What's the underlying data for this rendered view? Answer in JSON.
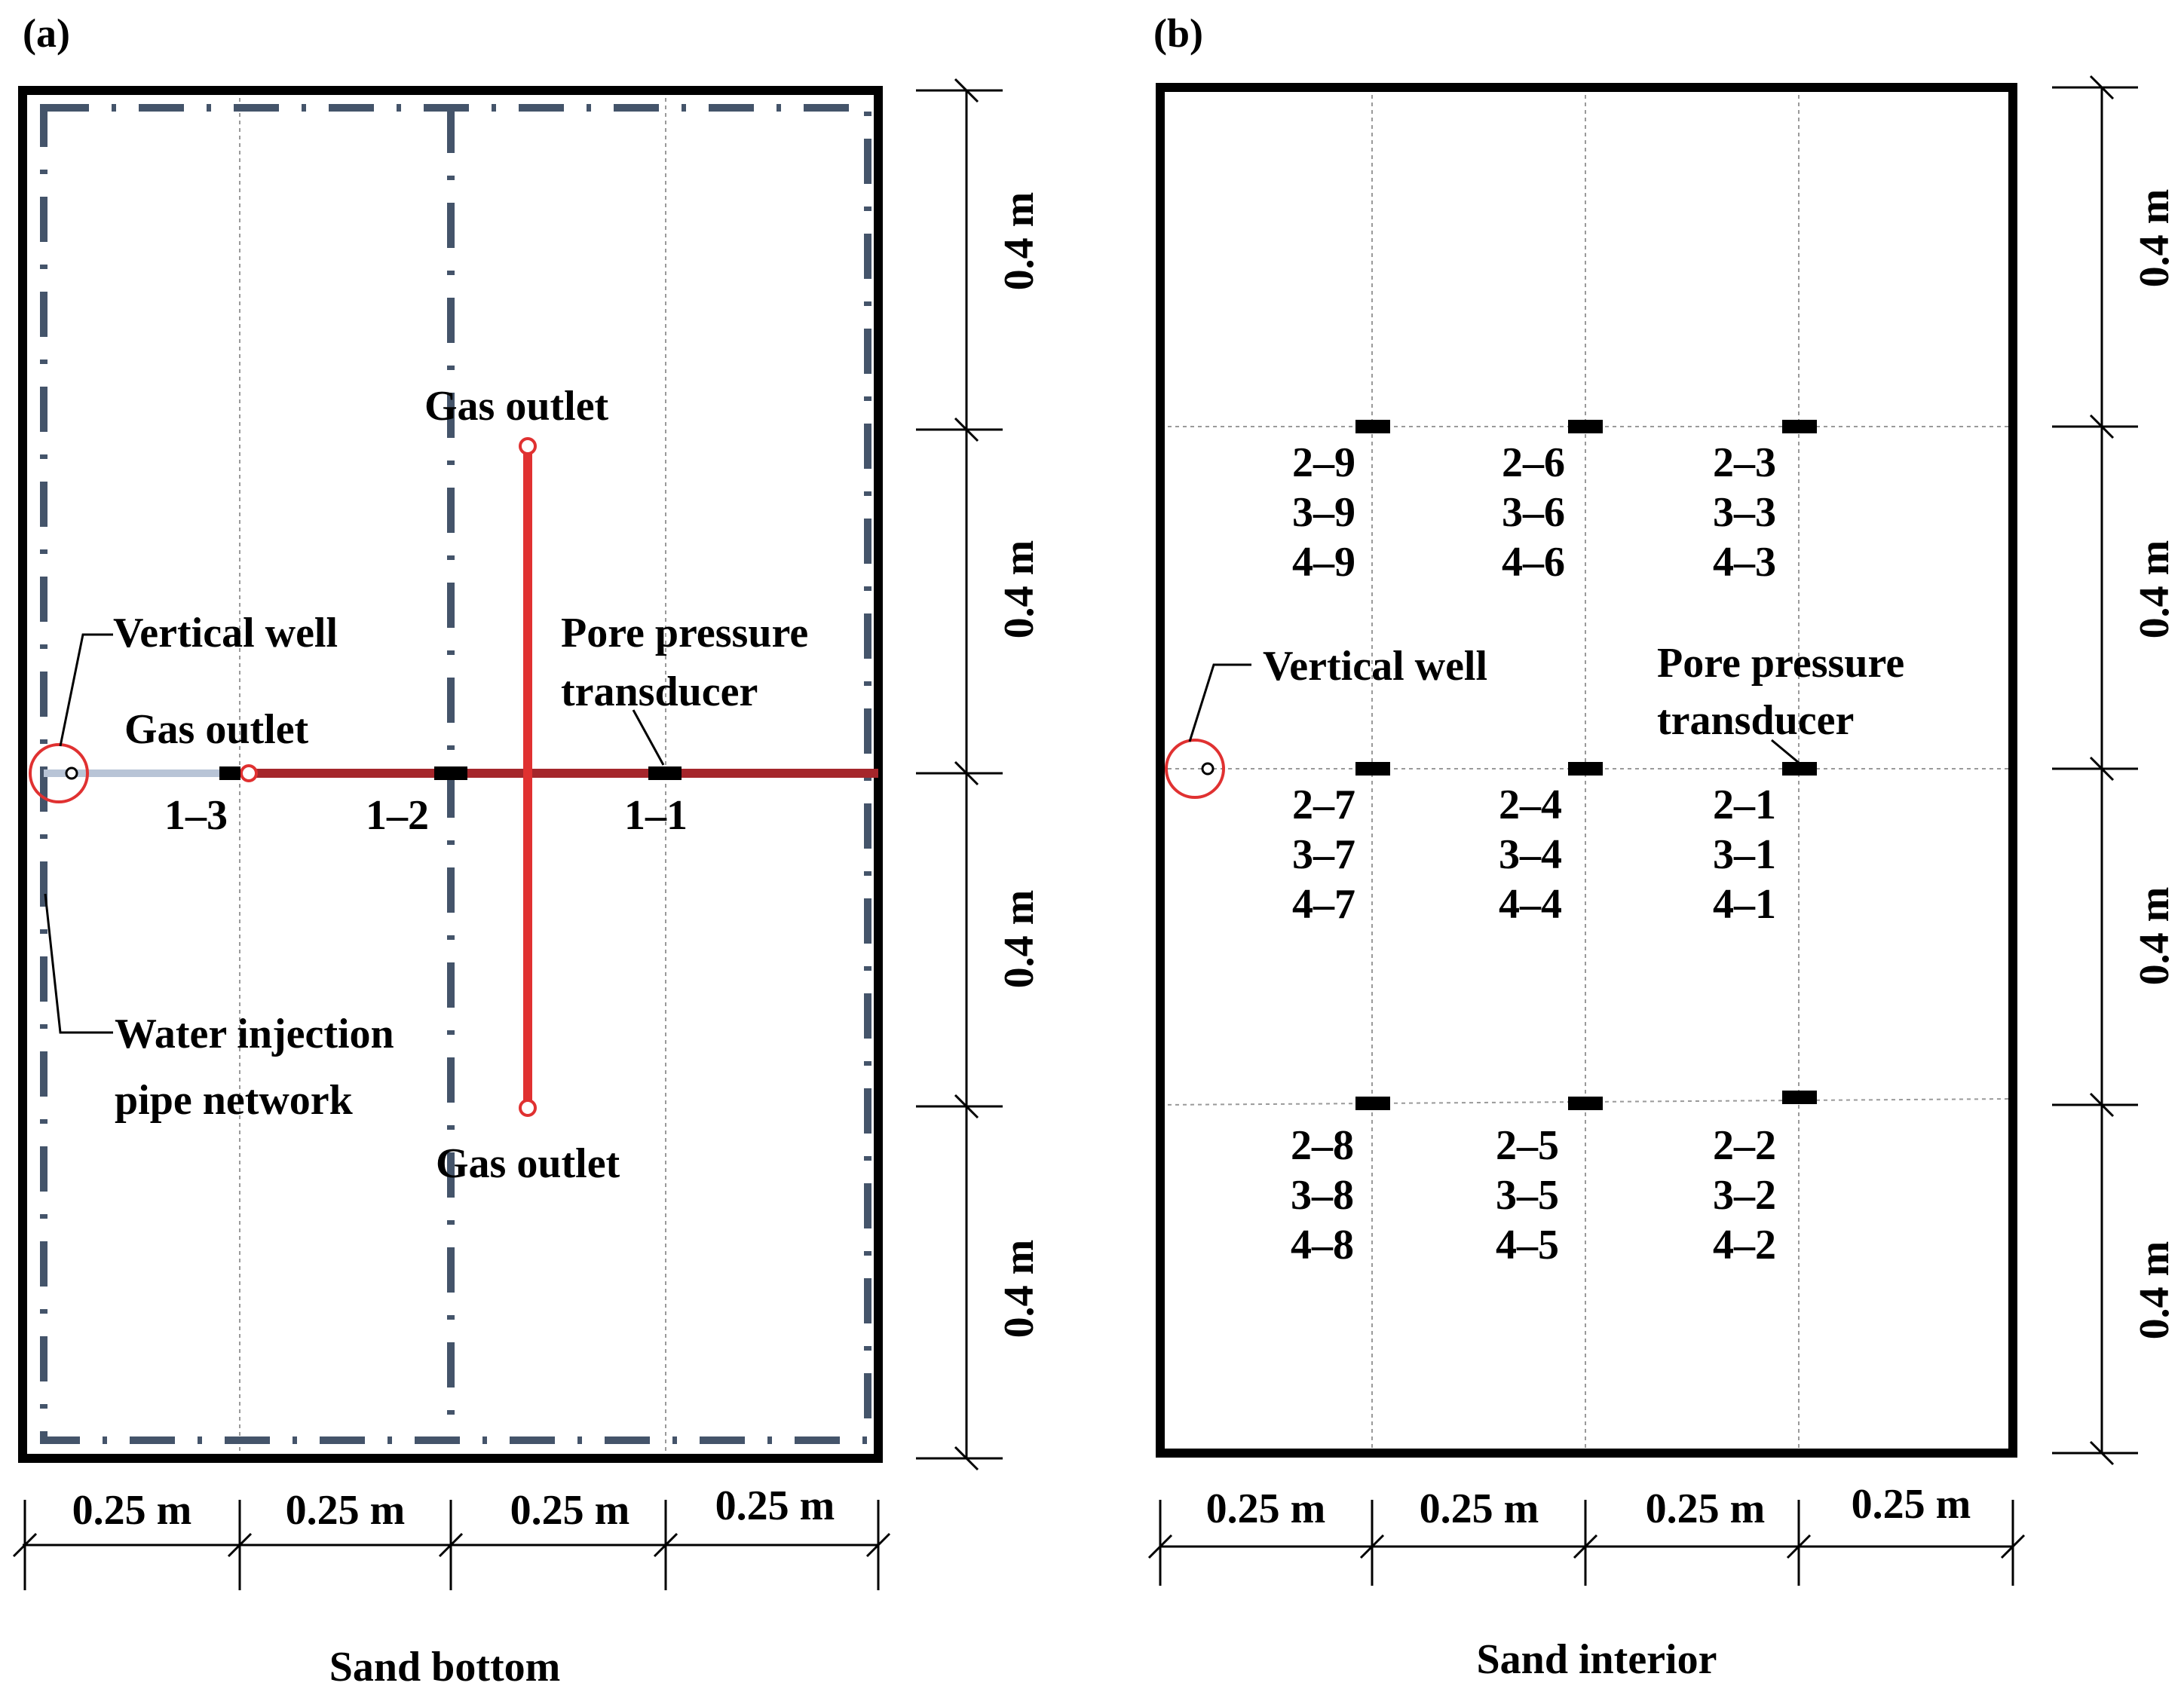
{
  "panel_a": {
    "letter": "(a)",
    "caption": "Sand bottom",
    "labels": {
      "gas_outlet_top": "Gas outlet",
      "gas_outlet_left": "Gas outlet",
      "gas_outlet_bottom": "Gas outlet",
      "vertical_well": "Vertical well",
      "pore_line1": "Pore pressure",
      "pore_line2": "transducer",
      "water_line1": "Water injection",
      "water_line2": "pipe network"
    },
    "transducers": [
      "1–3",
      "1–2",
      "1–1"
    ],
    "dims_x": [
      "0.25 m",
      "0.25 m",
      "0.25 m",
      "0.25 m"
    ],
    "dims_y": [
      "0.4 m",
      "0.4 m",
      "0.4 m",
      "0.4 m"
    ]
  },
  "panel_b": {
    "letter": "(b)",
    "caption": "Sand interior",
    "labels": {
      "vertical_well": "Vertical well",
      "pore_line1": "Pore pressure",
      "pore_line2": "transducer"
    },
    "groups": [
      [
        "2–9",
        "3–9",
        "4–9"
      ],
      [
        "2–6",
        "3–6",
        "4–6"
      ],
      [
        "2–3",
        "3–3",
        "4–3"
      ],
      [
        "2–7",
        "3–7",
        "4–7"
      ],
      [
        "2–4",
        "3–4",
        "4–4"
      ],
      [
        "2–1",
        "3–1",
        "4–1"
      ],
      [
        "2–8",
        "3–8",
        "4–8"
      ],
      [
        "2–5",
        "3–5",
        "4–5"
      ],
      [
        "2–2",
        "3–2",
        "4–2"
      ]
    ],
    "dims_x": [
      "0.25 m",
      "0.25 m",
      "0.25 m",
      "0.25 m"
    ],
    "dims_y": [
      "0.4 m",
      "0.4 m",
      "0.4 m",
      "0.4 m"
    ]
  },
  "colors": {
    "frame": "#000000",
    "pipe_network": "#44546a",
    "gas_pipe": "#e03131",
    "gas_pipe_dark": "#a5262b",
    "well_pipe": "#b8c4d6",
    "grid": "#9a9a9a"
  }
}
